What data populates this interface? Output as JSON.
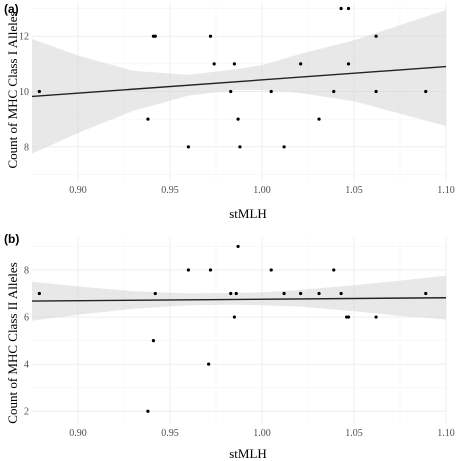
{
  "chart_data": [
    {
      "type": "scatter",
      "panel_label": "(a)",
      "xlabel": "stMLH",
      "ylabel": "Count of MHC Class I Alleles",
      "xlim": [
        0.875,
        1.1
      ],
      "ylim": [
        6.8,
        13.2
      ],
      "xticks": [
        0.9,
        0.95,
        1.0,
        1.05,
        1.1
      ],
      "xtick_labels": [
        "0.90",
        "0.95",
        "1.00",
        "1.05",
        "1.10"
      ],
      "yticks": [
        8,
        10,
        12
      ],
      "ytick_labels": [
        "8",
        "10",
        "12"
      ],
      "grid": true,
      "points": [
        {
          "x": 0.879,
          "y": 10
        },
        {
          "x": 0.938,
          "y": 9
        },
        {
          "x": 0.941,
          "y": 12
        },
        {
          "x": 0.942,
          "y": 12
        },
        {
          "x": 0.96,
          "y": 8
        },
        {
          "x": 0.972,
          "y": 12
        },
        {
          "x": 0.974,
          "y": 11
        },
        {
          "x": 0.983,
          "y": 10
        },
        {
          "x": 0.985,
          "y": 11
        },
        {
          "x": 0.987,
          "y": 9
        },
        {
          "x": 0.988,
          "y": 8
        },
        {
          "x": 1.005,
          "y": 10
        },
        {
          "x": 1.012,
          "y": 8
        },
        {
          "x": 1.021,
          "y": 11
        },
        {
          "x": 1.031,
          "y": 9
        },
        {
          "x": 1.039,
          "y": 10
        },
        {
          "x": 1.043,
          "y": 13
        },
        {
          "x": 1.047,
          "y": 13
        },
        {
          "x": 1.047,
          "y": 11
        },
        {
          "x": 1.062,
          "y": 12
        },
        {
          "x": 1.062,
          "y": 10
        },
        {
          "x": 1.089,
          "y": 10
        }
      ],
      "fit": {
        "x": [
          0.875,
          1.1
        ],
        "y": [
          9.82,
          10.9
        ]
      },
      "band": {
        "x": [
          0.875,
          0.9,
          0.93,
          0.96,
          0.985,
          1.0,
          1.02,
          1.05,
          1.075,
          1.1
        ],
        "lower": [
          7.75,
          8.5,
          9.3,
          9.85,
          10.05,
          10.05,
          9.95,
          9.65,
          9.2,
          8.75
        ],
        "upper": [
          11.9,
          11.3,
          10.75,
          10.6,
          10.8,
          10.95,
          11.35,
          11.85,
          12.4,
          12.95
        ]
      }
    },
    {
      "type": "scatter",
      "panel_label": "(b)",
      "xlabel": "stMLH",
      "ylabel": "Count of MHC Class II Alleles",
      "xlim": [
        0.875,
        1.1
      ],
      "ylim": [
        1.5,
        9.4
      ],
      "xticks": [
        0.9,
        0.95,
        1.0,
        1.05,
        1.1
      ],
      "xtick_labels": [
        "0.90",
        "0.95",
        "1.00",
        "1.05",
        "1.10"
      ],
      "yticks": [
        2,
        4,
        6,
        8
      ],
      "ytick_labels": [
        "2",
        "4",
        "6",
        "8"
      ],
      "grid": true,
      "points": [
        {
          "x": 0.879,
          "y": 7
        },
        {
          "x": 0.938,
          "y": 2
        },
        {
          "x": 0.941,
          "y": 5
        },
        {
          "x": 0.942,
          "y": 7
        },
        {
          "x": 0.96,
          "y": 8
        },
        {
          "x": 0.971,
          "y": 4
        },
        {
          "x": 0.972,
          "y": 8
        },
        {
          "x": 0.983,
          "y": 7
        },
        {
          "x": 0.985,
          "y": 6
        },
        {
          "x": 0.986,
          "y": 7
        },
        {
          "x": 0.987,
          "y": 9
        },
        {
          "x": 1.005,
          "y": 8
        },
        {
          "x": 1.012,
          "y": 7
        },
        {
          "x": 1.021,
          "y": 7
        },
        {
          "x": 1.031,
          "y": 7
        },
        {
          "x": 1.039,
          "y": 8
        },
        {
          "x": 1.043,
          "y": 7
        },
        {
          "x": 1.046,
          "y": 6
        },
        {
          "x": 1.047,
          "y": 6
        },
        {
          "x": 1.062,
          "y": 6
        },
        {
          "x": 1.089,
          "y": 7
        }
      ],
      "fit": {
        "x": [
          0.875,
          1.1
        ],
        "y": [
          6.68,
          6.82
        ]
      },
      "band": {
        "x": [
          0.875,
          0.9,
          0.93,
          0.96,
          0.985,
          1.0,
          1.02,
          1.05,
          1.075,
          1.1
        ],
        "lower": [
          5.85,
          6.1,
          6.35,
          6.5,
          6.52,
          6.5,
          6.45,
          6.25,
          6.05,
          5.9
        ],
        "upper": [
          7.5,
          7.3,
          7.1,
          7.0,
          7.02,
          7.05,
          7.15,
          7.35,
          7.55,
          7.75
        ]
      }
    }
  ]
}
